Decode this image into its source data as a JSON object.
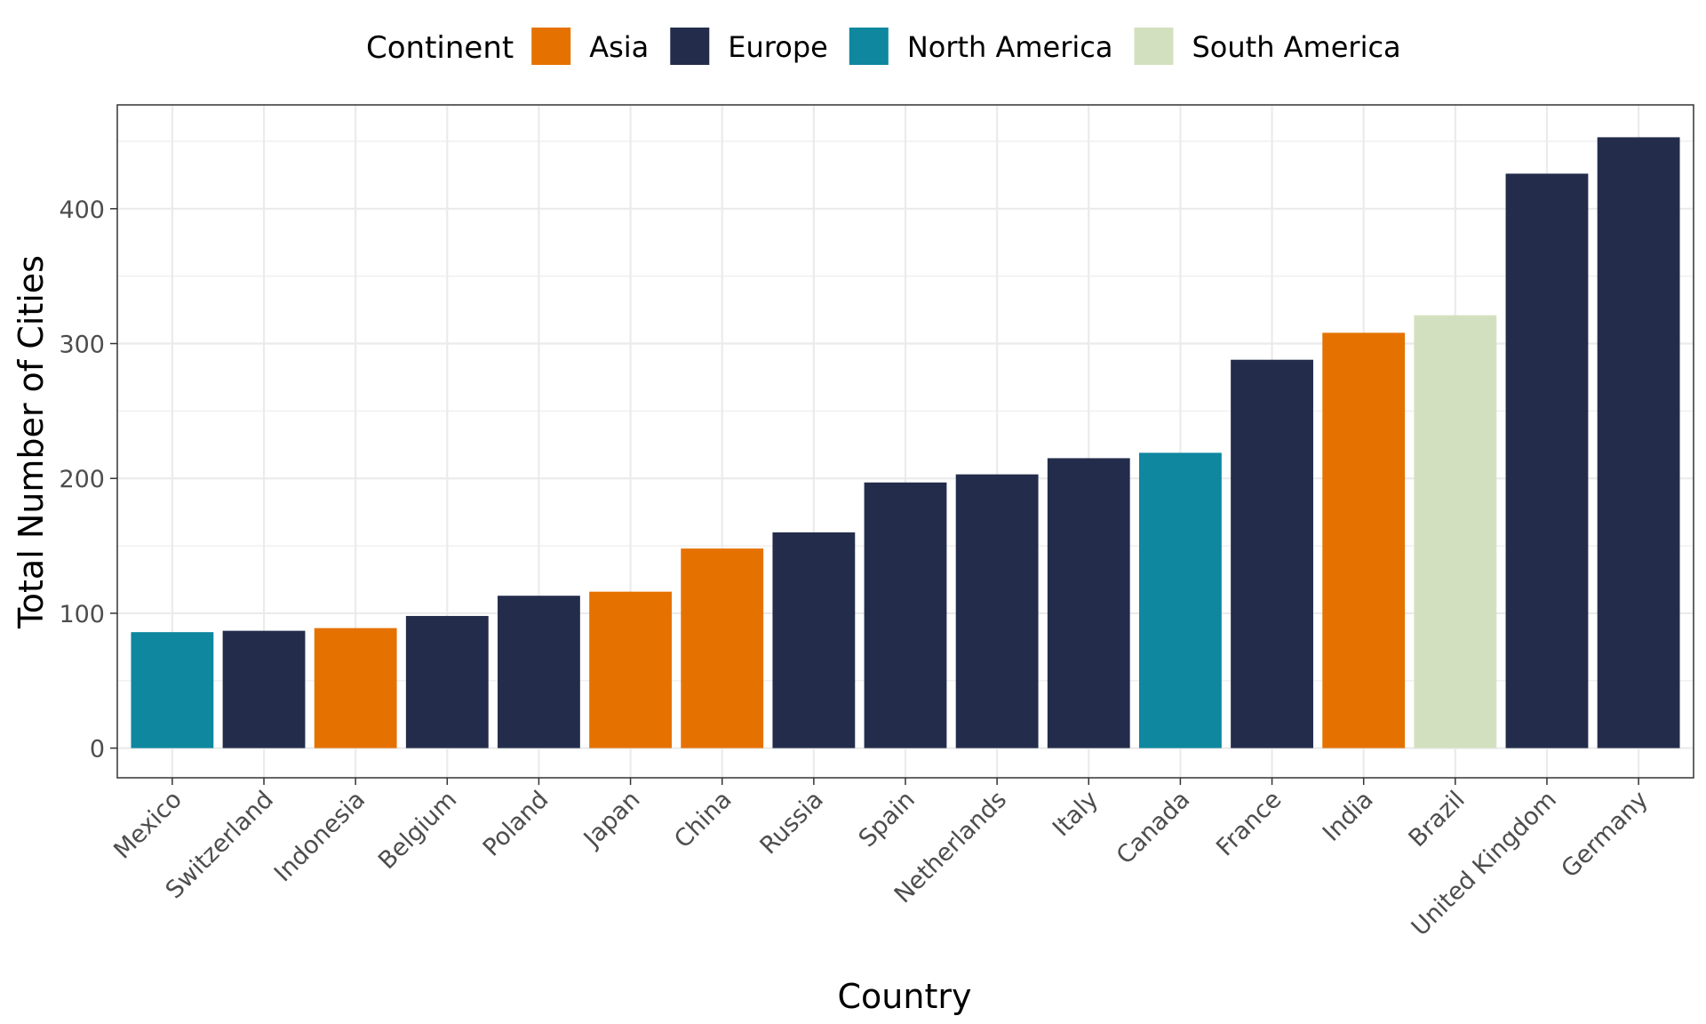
{
  "chart_data": {
    "type": "bar",
    "title": "",
    "xlabel": "Country",
    "ylabel": "Total Number of Cities",
    "ylim": [
      -22,
      477
    ],
    "yticks": [
      0,
      100,
      200,
      300,
      400
    ],
    "grid": true,
    "legend": {
      "title": "Continent",
      "position": "top",
      "entries": [
        {
          "name": "Asia",
          "color": "#E57200"
        },
        {
          "name": "Europe",
          "color": "#232D4B"
        },
        {
          "name": "North America",
          "color": "#0E879F"
        },
        {
          "name": "South America",
          "color": "#D3E0BF"
        }
      ]
    },
    "categories": [
      "Mexico",
      "Switzerland",
      "Indonesia",
      "Belgium",
      "Poland",
      "Japan",
      "China",
      "Russia",
      "Spain",
      "Netherlands",
      "Italy",
      "Canada",
      "France",
      "India",
      "Brazil",
      "United Kingdom",
      "Germany"
    ],
    "values": [
      86,
      87,
      89,
      98,
      113,
      116,
      148,
      160,
      197,
      203,
      215,
      219,
      288,
      308,
      321,
      426,
      453
    ],
    "groups": [
      "North America",
      "Europe",
      "Asia",
      "Europe",
      "Europe",
      "Asia",
      "Asia",
      "Europe",
      "Europe",
      "Europe",
      "Europe",
      "North America",
      "Europe",
      "Asia",
      "South America",
      "Europe",
      "Europe"
    ]
  }
}
